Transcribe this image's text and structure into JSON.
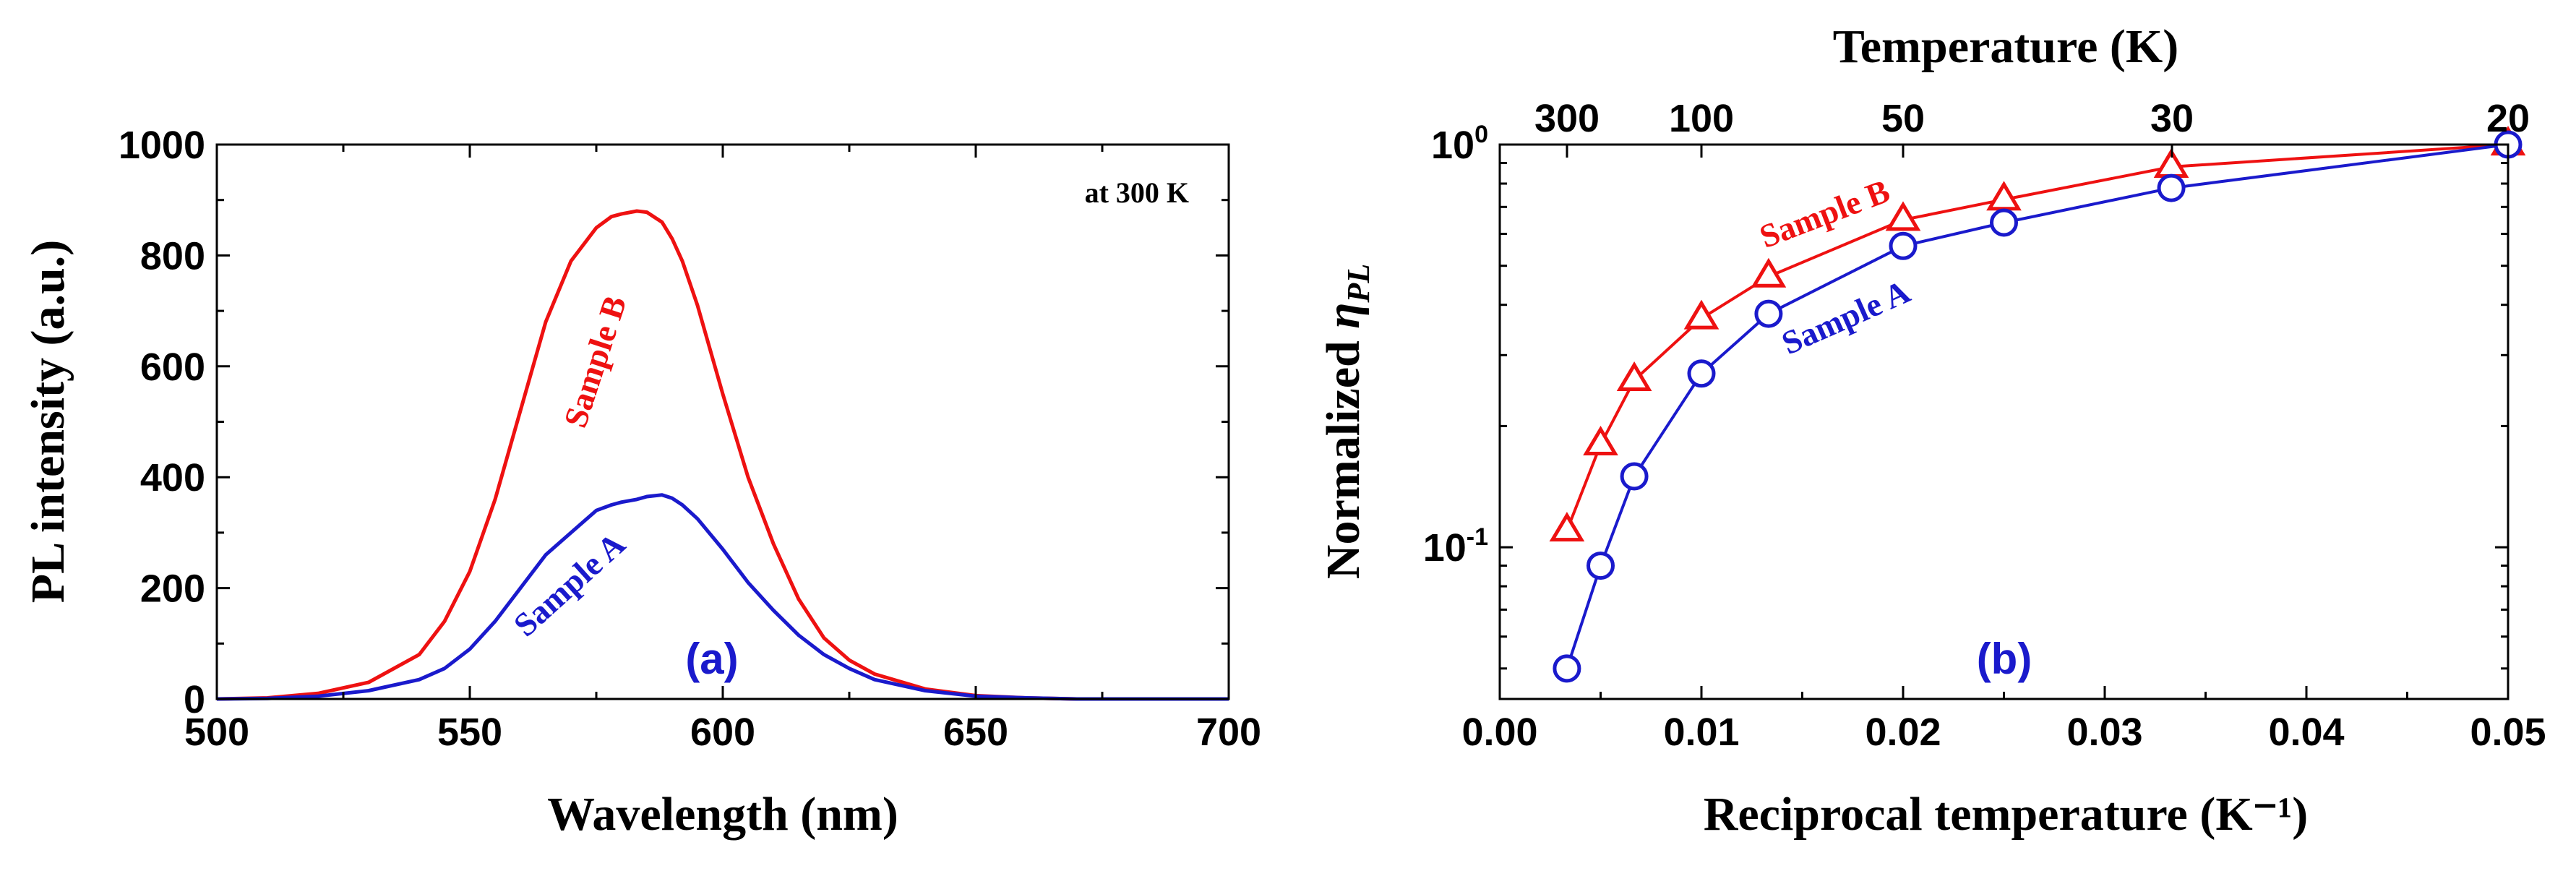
{
  "chart_data": [
    {
      "type": "line",
      "panel_label": "(a)",
      "annotation": "at 300 K",
      "xlabel": "Wavelength (nm)",
      "ylabel": "PL intensity (a.u.)",
      "xlim": [
        500,
        700
      ],
      "ylim": [
        0,
        1000
      ],
      "x_ticks": [
        "500",
        "550",
        "600",
        "650",
        "700"
      ],
      "y_ticks": [
        "0",
        "200",
        "400",
        "600",
        "800",
        "1000"
      ],
      "x": [
        500,
        510,
        520,
        530,
        540,
        545,
        550,
        555,
        560,
        565,
        570,
        575,
        578,
        580,
        583,
        585,
        588,
        590,
        592,
        595,
        600,
        605,
        610,
        615,
        620,
        625,
        630,
        640,
        650,
        660,
        670,
        680,
        690,
        700
      ],
      "series": [
        {
          "name": "Sample B",
          "color": "#ee1111",
          "values": [
            0,
            2,
            10,
            30,
            80,
            140,
            230,
            360,
            520,
            680,
            790,
            850,
            870,
            875,
            880,
            878,
            860,
            830,
            790,
            710,
            550,
            400,
            280,
            180,
            110,
            70,
            45,
            18,
            6,
            2,
            0,
            0,
            0,
            0
          ]
        },
        {
          "name": "Sample A",
          "color": "#1a1acc",
          "values": [
            0,
            1,
            5,
            15,
            35,
            55,
            90,
            140,
            200,
            260,
            300,
            340,
            350,
            355,
            360,
            365,
            368,
            362,
            350,
            325,
            270,
            210,
            160,
            115,
            80,
            55,
            35,
            15,
            5,
            2,
            0,
            0,
            0,
            0
          ]
        }
      ]
    },
    {
      "type": "scatter",
      "panel_label": "(b)",
      "xlabel": "Reciprocal temperature (K⁻¹)",
      "ylabel_main": "Normalized ",
      "ylabel_symbol": "η",
      "ylabel_sub": "PL",
      "top_xlabel": "Temperature (K)",
      "xlim": [
        0,
        0.05
      ],
      "ylim": [
        0.042,
        1
      ],
      "yscale": "log",
      "x_ticks": [
        "0.00",
        "0.01",
        "0.02",
        "0.03",
        "0.04",
        "0.05"
      ],
      "y_ticks": [
        {
          "base": "10",
          "exp": "0",
          "value": 1
        },
        {
          "base": "10",
          "exp": "-1",
          "value": 0.1
        }
      ],
      "top_ticks": [
        {
          "label": "300",
          "temp": 300
        },
        {
          "label": "100",
          "temp": 100
        },
        {
          "label": "50",
          "temp": 50
        },
        {
          "label": "30",
          "temp": 30
        },
        {
          "label": "20",
          "temp": 20
        }
      ],
      "series": [
        {
          "name": "Sample B",
          "color": "#ee1111",
          "marker": "triangle",
          "x": [
            0.00333,
            0.005,
            0.00667,
            0.01,
            0.01333,
            0.02,
            0.025,
            0.0333,
            0.05
          ],
          "y": [
            0.11,
            0.18,
            0.26,
            0.37,
            0.47,
            0.65,
            0.73,
            0.88,
            1.0
          ]
        },
        {
          "name": "Sample A",
          "color": "#1a1acc",
          "marker": "circle",
          "x": [
            0.00333,
            0.005,
            0.00667,
            0.01,
            0.01333,
            0.02,
            0.025,
            0.0333,
            0.05
          ],
          "y": [
            0.05,
            0.09,
            0.15,
            0.27,
            0.38,
            0.56,
            0.64,
            0.78,
            1.0
          ]
        }
      ]
    }
  ]
}
